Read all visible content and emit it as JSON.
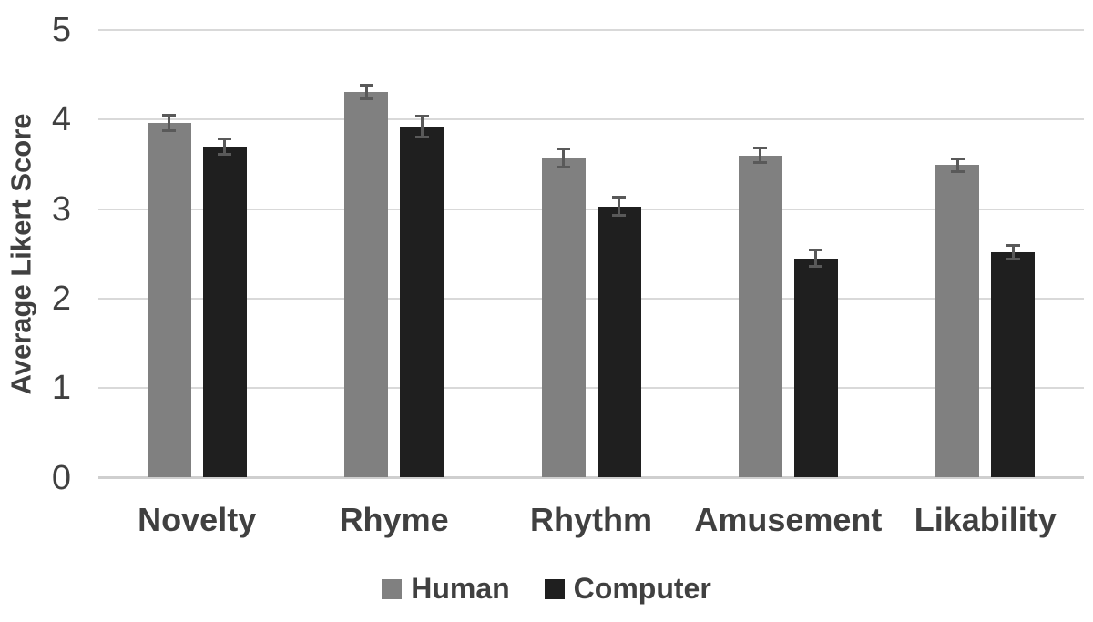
{
  "colors": {
    "background": "#ffffff",
    "text": "#404040",
    "gridline": "#d9d9d9",
    "baseline": "#cfcfcf",
    "error_bar": "#595959"
  },
  "chart_data": {
    "type": "bar",
    "title": "",
    "xlabel": "",
    "ylabel": "Average Likert Score",
    "ylim": [
      0,
      5
    ],
    "yticks": [
      0,
      1,
      2,
      3,
      4,
      5
    ],
    "grid": true,
    "legend_position": "bottom",
    "categories": [
      "Novelty",
      "Rhyme",
      "Rhythm",
      "Amusement",
      "Likability"
    ],
    "series": [
      {
        "name": "Human",
        "color": "#808080",
        "values": [
          3.96,
          4.31,
          3.57,
          3.6,
          3.49
        ],
        "errors": [
          0.1,
          0.09,
          0.12,
          0.1,
          0.09
        ]
      },
      {
        "name": "Computer",
        "color": "#1f1f1f",
        "values": [
          3.7,
          3.92,
          3.03,
          2.45,
          2.52
        ],
        "errors": [
          0.1,
          0.13,
          0.12,
          0.11,
          0.09
        ]
      }
    ]
  }
}
